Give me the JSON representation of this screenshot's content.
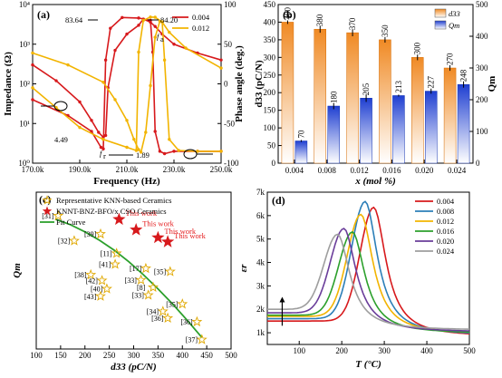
{
  "colors": {
    "red": "#d7191c",
    "yellow": "#f2b400",
    "orange_bar": "#f08a24",
    "blue_bar": "#1f3fd1",
    "star_outline": "#e0a800",
    "fit_green": "#2ca02c"
  },
  "chart_data": [
    {
      "panel": "(a)",
      "type": "line",
      "xlabel": "Frequency (Hz)",
      "ylabel_left": "Impedance (Ω)",
      "ylabel_right": "Phase angle (deg.)",
      "xlim": [
        170000,
        250000
      ],
      "x_ticks": [
        "170.0k",
        "190.0k",
        "210.0k",
        "230.0k",
        "250.0k"
      ],
      "ylim_left_log": [
        1,
        10000
      ],
      "y_ticks_left": [
        "10⁰",
        "10¹",
        "10²",
        "10³",
        "10⁴"
      ],
      "ylim_right": [
        -100,
        100
      ],
      "y_ticks_right": [
        "-100",
        "-50",
        "0",
        "50",
        "100"
      ],
      "legend": [
        "0.004",
        "0.012"
      ],
      "annotations": [
        "83.64",
        "84.20",
        "4.49",
        "1.89",
        "f",
        "a",
        "f",
        "r"
      ],
      "series": [
        {
          "name": "0.004",
          "kind": "impedance",
          "x": [
            170000,
            180000,
            190000,
            195000,
            198000,
            200000,
            201000,
            202000,
            205000,
            210000,
            215000,
            217000,
            220000,
            222000,
            225000,
            230000,
            240000,
            250000
          ],
          "y": [
            300,
            120,
            35,
            12,
            6,
            4.5,
            5,
            80,
            700,
            1800,
            3000,
            4300,
            3600,
            2800,
            1800,
            1000,
            600,
            400
          ]
        },
        {
          "name": "0.004",
          "kind": "phase",
          "x": [
            170000,
            185000,
            195000,
            199000,
            200000,
            201000,
            203000,
            208000,
            215000,
            220000,
            221000,
            222000,
            224000,
            226000,
            230000,
            240000,
            250000
          ],
          "y": [
            -20,
            -40,
            -60,
            -80,
            -82,
            30,
            70,
            83.64,
            83,
            80,
            40,
            -60,
            -85,
            -88,
            -85,
            -85,
            -85
          ]
        },
        {
          "name": "0.012",
          "kind": "impedance",
          "x": [
            170000,
            185000,
            200000,
            205000,
            210000,
            213000,
            215000,
            216000,
            218000,
            220000,
            222000,
            224000,
            225000,
            228000,
            235000,
            250000
          ],
          "y": [
            600,
            300,
            110,
            40,
            12,
            4,
            2.2,
            1.89,
            6,
            90,
            1500,
            3800,
            3600,
            2000,
            800,
            250
          ]
        },
        {
          "name": "0.012",
          "kind": "phase",
          "x": [
            170000,
            180000,
            190000,
            200000,
            210000,
            214000,
            215000,
            217000,
            220000,
            222000,
            225000,
            226000,
            228000,
            232000,
            240000,
            250000
          ],
          "y": [
            -5,
            -30,
            -55,
            -70,
            -80,
            -84,
            40,
            80,
            84.2,
            84,
            78,
            30,
            -70,
            -84,
            -85,
            -85
          ]
        }
      ]
    },
    {
      "panel": "(b)",
      "type": "bar",
      "xlabel": "x (mol %)",
      "ylabel_left": "d33 (pC/N)",
      "ylabel_right": "Qm",
      "ylim_left": [
        0,
        450
      ],
      "y_ticks_left": [
        "0",
        "50",
        "100",
        "150",
        "200",
        "250",
        "300",
        "350",
        "400",
        "450"
      ],
      "ylim_right": [
        0,
        500
      ],
      "y_ticks_right": [
        "0",
        "100",
        "200",
        "300",
        "400",
        "500"
      ],
      "categories": [
        "0.004",
        "0.008",
        "0.012",
        "0.016",
        "0.020",
        "0.024"
      ],
      "legend": [
        "d33",
        "Qm"
      ],
      "series": [
        {
          "name": "d33",
          "values": [
            400,
            380,
            370,
            350,
            300,
            270
          ],
          "errors": [
            5,
            10,
            10,
            8,
            8,
            8
          ]
        },
        {
          "name": "Qm",
          "values": [
            70,
            180,
            205,
            213,
            227,
            248
          ],
          "errors": [
            3,
            10,
            12,
            3,
            8,
            10
          ]
        }
      ]
    },
    {
      "panel": "(c)",
      "type": "scatter",
      "xlabel": "d33 (pC/N)",
      "ylabel": "Qm",
      "xlim": [
        100,
        500
      ],
      "x_ticks": [
        "100",
        "150",
        "200",
        "250",
        "300",
        "350",
        "400",
        "450",
        "500"
      ],
      "ylim": [
        0,
        300
      ],
      "legend": [
        "Representative KNN-based Ceramics",
        "KNNT-BNZ-BFO/x CSO Ceramics",
        "Fit Curve"
      ],
      "reference_points": [
        {
          "label": "[31]",
          "x": 145,
          "y": 255
        },
        {
          "label": "[32]",
          "x": 178,
          "y": 207
        },
        {
          "label": "[39]",
          "x": 232,
          "y": 220
        },
        {
          "label": "[11]",
          "x": 265,
          "y": 183
        },
        {
          "label": "[41]",
          "x": 262,
          "y": 162
        },
        {
          "label": "[17]",
          "x": 325,
          "y": 154
        },
        {
          "label": "[38]",
          "x": 212,
          "y": 142
        },
        {
          "label": "[42]",
          "x": 235,
          "y": 131
        },
        {
          "label": "[40]",
          "x": 245,
          "y": 115
        },
        {
          "label": "[43]",
          "x": 232,
          "y": 101
        },
        {
          "label": "[33]",
          "x": 315,
          "y": 132
        },
        {
          "label": "[33]",
          "x": 330,
          "y": 103
        },
        {
          "label": "[8]",
          "x": 340,
          "y": 118
        },
        {
          "label": "[35]",
          "x": 375,
          "y": 148
        },
        {
          "label": "[34]",
          "x": 360,
          "y": 72
        },
        {
          "label": "[35]",
          "x": 400,
          "y": 86
        },
        {
          "label": "[36]",
          "x": 370,
          "y": 59
        },
        {
          "label": "[36]",
          "x": 430,
          "y": 52
        },
        {
          "label": "[37]",
          "x": 440,
          "y": 18
        }
      ],
      "this_work": [
        {
          "label": "This work",
          "x": 270,
          "y": 248
        },
        {
          "label": "This work",
          "x": 305,
          "y": 228
        },
        {
          "label": "This work",
          "x": 350,
          "y": 213
        },
        {
          "label": "This work",
          "x": 370,
          "y": 205
        }
      ],
      "fit_curve": {
        "x": [
          140,
          170,
          200,
          230,
          260,
          290,
          320,
          350,
          380,
          410,
          440
        ],
        "y": [
          248,
          238,
          224,
          208,
          189,
          167,
          142,
          115,
          86,
          55,
          22
        ]
      }
    },
    {
      "panel": "(d)",
      "type": "line",
      "xlabel": "T (°C)",
      "ylabel": "εr",
      "xlim": [
        25,
        500
      ],
      "x_ticks": [
        "100",
        "200",
        "300",
        "400",
        "500"
      ],
      "ylim": [
        500,
        7000
      ],
      "y_ticks": [
        "1k",
        "2k",
        "3k",
        "4k",
        "5k",
        "6k",
        "7k"
      ],
      "legend": [
        "0.004",
        "0.008",
        "0.012",
        "0.016",
        "0.020",
        "0.024"
      ],
      "series": [
        {
          "name": "0.004",
          "peak_T": 275,
          "peak": 6350,
          "base": 1500
        },
        {
          "name": "0.008",
          "peak_T": 255,
          "peak": 6600,
          "base": 1600
        },
        {
          "name": "0.012",
          "peak_T": 245,
          "peak": 6050,
          "base": 1700
        },
        {
          "name": "0.016",
          "peak_T": 225,
          "peak": 5300,
          "base": 1750
        },
        {
          "name": "0.020",
          "peak_T": 205,
          "peak": 5450,
          "base": 1850
        },
        {
          "name": "0.024",
          "peak_T": 190,
          "peak": 5200,
          "base": 2000
        }
      ]
    }
  ],
  "panel_labels": [
    "(a)",
    "(b)",
    "(c)",
    "(d)"
  ]
}
